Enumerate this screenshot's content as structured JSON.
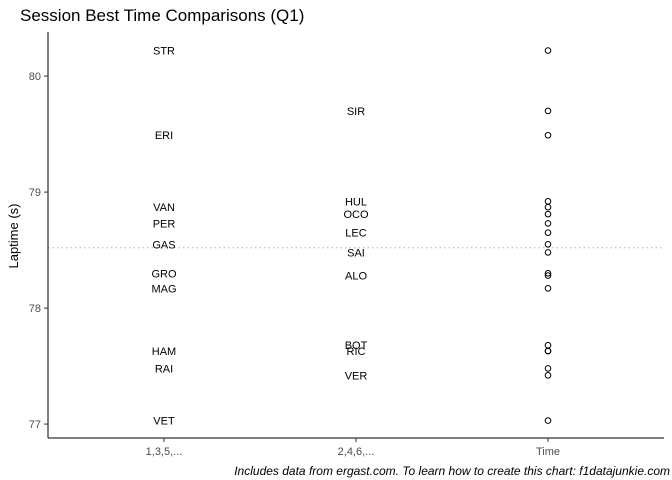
{
  "chart_data": {
    "type": "scatter",
    "title": "Session Best Time Comparisons (Q1)",
    "ylabel": "Laptime (s)",
    "xlabel": "",
    "caption": "Includes data from ergast.com. To learn how to create this chart: f1datajunkie.com",
    "categories": [
      "1,3,5,...",
      "2,4,6,...",
      "Time"
    ],
    "ylim": [
      76.88,
      80.38
    ],
    "yticks": [
      77,
      78,
      79,
      80
    ],
    "reference_line": 78.52,
    "grid": false,
    "drivers": [
      {
        "label": "STR",
        "column": "1,3,5,...",
        "y": 80.22
      },
      {
        "label": "ERI",
        "column": "1,3,5,...",
        "y": 79.49
      },
      {
        "label": "VAN",
        "column": "1,3,5,...",
        "y": 78.87
      },
      {
        "label": "PER",
        "column": "1,3,5,...",
        "y": 78.73
      },
      {
        "label": "GAS",
        "column": "1,3,5,...",
        "y": 78.55
      },
      {
        "label": "GRO",
        "column": "1,3,5,...",
        "y": 78.3
      },
      {
        "label": "MAG",
        "column": "1,3,5,...",
        "y": 78.17
      },
      {
        "label": "HAM",
        "column": "1,3,5,...",
        "y": 77.63
      },
      {
        "label": "RAI",
        "column": "1,3,5,...",
        "y": 77.48
      },
      {
        "label": "VET",
        "column": "1,3,5,...",
        "y": 77.03
      },
      {
        "label": "SIR",
        "column": "2,4,6,...",
        "y": 79.7
      },
      {
        "label": "HUL",
        "column": "2,4,6,...",
        "y": 78.92
      },
      {
        "label": "OCO",
        "column": "2,4,6,...",
        "y": 78.81
      },
      {
        "label": "LEC",
        "column": "2,4,6,...",
        "y": 78.65
      },
      {
        "label": "SAI",
        "column": "2,4,6,...",
        "y": 78.48
      },
      {
        "label": "ALO",
        "column": "2,4,6,...",
        "y": 78.28
      },
      {
        "label": "BOT",
        "column": "2,4,6,...",
        "y": 77.68
      },
      {
        "label": "RIC",
        "column": "2,4,6,...",
        "y": 77.63
      },
      {
        "label": "VER",
        "column": "2,4,6,...",
        "y": 77.42
      }
    ],
    "time_points": [
      80.22,
      79.7,
      79.49,
      78.92,
      78.87,
      78.81,
      78.73,
      78.65,
      78.55,
      78.48,
      78.3,
      78.28,
      78.17,
      77.68,
      77.63,
      77.63,
      77.48,
      77.42,
      77.03
    ]
  }
}
